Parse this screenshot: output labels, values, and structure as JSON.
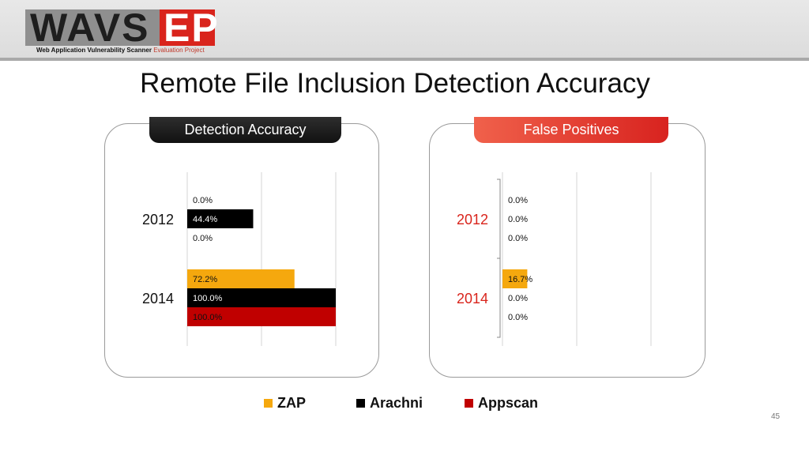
{
  "header": {
    "logo_main": "WAVS",
    "logo_accent": "EP",
    "logo_subtitle": "Web Application Vulnerability Scanner",
    "logo_subtitle_accent": "Evaluation Project"
  },
  "title": "Remote File Inclusion Detection Accuracy",
  "legend": [
    {
      "name": "ZAP",
      "color": "#f5a80e"
    },
    {
      "name": "Arachni",
      "color": "#000000"
    },
    {
      "name": "Appscan",
      "color": "#c00000"
    }
  ],
  "page_number": "45",
  "chart_data": [
    {
      "type": "bar",
      "orientation": "horizontal",
      "title": "Detection Accuracy",
      "categories": [
        "2012",
        "2014"
      ],
      "series": [
        {
          "name": "ZAP",
          "color": "#f5a80e",
          "values": [
            0.0,
            72.2
          ]
        },
        {
          "name": "Arachni",
          "color": "#000000",
          "values": [
            44.4,
            100.0
          ]
        },
        {
          "name": "Appscan",
          "color": "#c00000",
          "values": [
            0.0,
            100.0
          ]
        }
      ],
      "labels": [
        [
          "0.0%",
          "44.4%",
          "0.0%"
        ],
        [
          "72.2%",
          "100.0%",
          "100.0%"
        ]
      ],
      "xlim": [
        0,
        100
      ],
      "grid": true,
      "category_color": "#111111"
    },
    {
      "type": "bar",
      "orientation": "horizontal",
      "title": "False Positives",
      "categories": [
        "2012",
        "2014"
      ],
      "series": [
        {
          "name": "ZAP",
          "color": "#f5a80e",
          "values": [
            0.0,
            16.7
          ]
        },
        {
          "name": "Arachni",
          "color": "#000000",
          "values": [
            0.0,
            0.0
          ]
        },
        {
          "name": "Appscan",
          "color": "#c00000",
          "values": [
            0.0,
            0.0
          ]
        }
      ],
      "labels": [
        [
          "0.0%",
          "0.0%",
          "0.0%"
        ],
        [
          "16.7%",
          "0.0%",
          "0.0%"
        ]
      ],
      "xlim": [
        0,
        100
      ],
      "grid": true,
      "category_color": "#d9241c"
    }
  ]
}
